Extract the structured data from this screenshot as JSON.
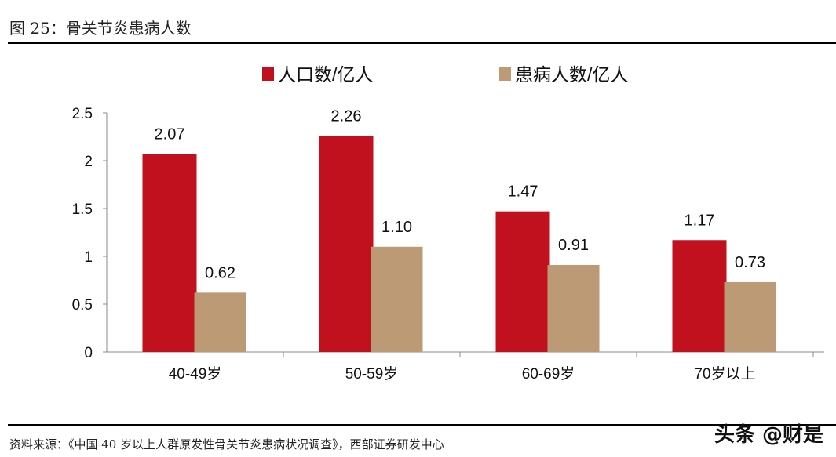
{
  "title": "图 25：骨关节炎患病人数",
  "source": "资料来源：《中国 40 岁以上人群原发性骨关节炎患病状况调查》，西部证券研发中心",
  "watermark": "头条 @财是",
  "chart_data": {
    "type": "bar",
    "title": "骨关节炎患病人数",
    "categories": [
      "40-49岁",
      "50-59岁",
      "60-69岁",
      "70岁以上"
    ],
    "series": [
      {
        "name": "人口数/亿人",
        "color": "#C2111E",
        "values": [
          2.07,
          2.26,
          1.47,
          1.17
        ],
        "labels": [
          "2.07",
          "2.26",
          "1.47",
          "1.17"
        ]
      },
      {
        "name": "患病人数/亿人",
        "color": "#BC9A76",
        "values": [
          0.62,
          1.1,
          0.91,
          0.73
        ],
        "labels": [
          "0.62",
          "1.10",
          "0.91",
          "0.73"
        ]
      }
    ],
    "yticks": [
      "0",
      "0.5",
      "1",
      "1.5",
      "2",
      "2.5"
    ],
    "ylim": [
      0,
      2.5
    ],
    "xlabel": "",
    "ylabel": "",
    "legend": "top-center",
    "grid": false
  }
}
